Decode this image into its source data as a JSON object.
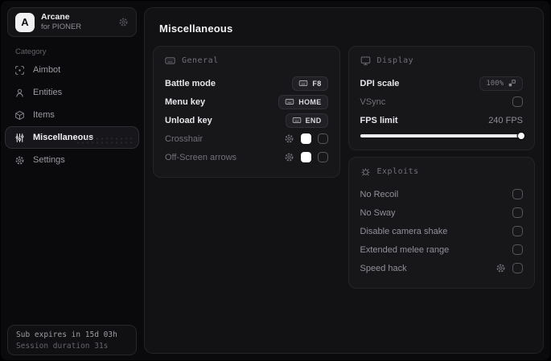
{
  "app": {
    "logo_letter": "A",
    "name": "Arcane",
    "subtitle": "for PIONER"
  },
  "sidebar": {
    "category_label": "Category",
    "items": [
      {
        "label": "Aimbot",
        "icon": "scan-icon",
        "active": false
      },
      {
        "label": "Entities",
        "icon": "entities-icon",
        "active": false
      },
      {
        "label": "Items",
        "icon": "box-icon",
        "active": false
      },
      {
        "label": "Miscellaneous",
        "icon": "sliders-icon",
        "active": true
      },
      {
        "label": "Settings",
        "icon": "gear-icon",
        "active": false
      }
    ],
    "footer": {
      "line1": "Sub expires in 15d 03h",
      "line2": "Session duration 31s"
    }
  },
  "main": {
    "title": "Miscellaneous",
    "panels": {
      "general": {
        "title": "General",
        "icon": "keyboard-icon",
        "rows": [
          {
            "label": "Battle mode",
            "keybind": "F8"
          },
          {
            "label": "Menu key",
            "keybind": "HOME"
          },
          {
            "label": "Unload key",
            "keybind": "END"
          },
          {
            "label": "Crosshair",
            "dim": true,
            "gear": true,
            "swatch": "#ffffff",
            "checked": false
          },
          {
            "label": "Off-Screen arrows",
            "dim": true,
            "gear": true,
            "swatch": "#ffffff",
            "checked": false
          }
        ]
      },
      "display": {
        "title": "Display",
        "icon": "monitor-icon",
        "dpi_label": "DPI scale",
        "dpi_value": "100%",
        "vsync_label": "VSync",
        "vsync_checked": false,
        "fps_label": "FPS limit",
        "fps_value": "240 FPS",
        "fps_percent": 100
      },
      "exploits": {
        "title": "Exploits",
        "icon": "bug-icon",
        "rows": [
          {
            "label": "No Recoil",
            "checked": false
          },
          {
            "label": "No Sway",
            "checked": false
          },
          {
            "label": "Disable camera shake",
            "checked": false
          },
          {
            "label": "Extended melee range",
            "checked": false
          },
          {
            "label": "Speed hack",
            "gear": true,
            "checked": false
          }
        ]
      }
    }
  },
  "colors": {
    "window_bg": "#0a0a0c",
    "panel_bg": "#17171a",
    "text_primary": "#e9e9ec",
    "text_dim": "#71717a",
    "swatch": "#ffffff",
    "slider": "#ededef"
  }
}
